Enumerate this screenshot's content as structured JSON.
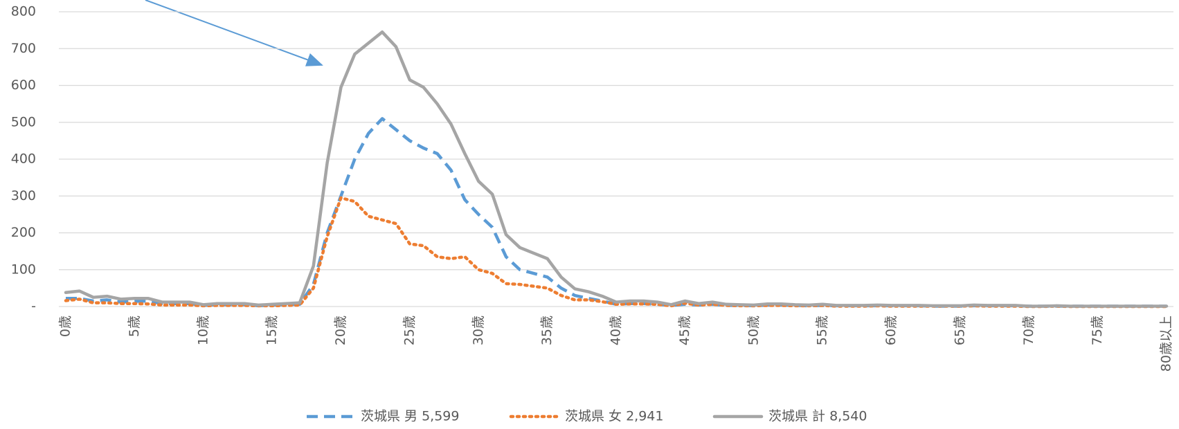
{
  "chart_data": {
    "type": "line",
    "categories": [
      "0歳",
      null,
      null,
      null,
      null,
      "5歳",
      null,
      null,
      null,
      null,
      "10歳",
      null,
      null,
      null,
      null,
      "15歳",
      null,
      null,
      null,
      null,
      "20歳",
      null,
      null,
      null,
      null,
      "25歳",
      null,
      null,
      null,
      null,
      "30歳",
      null,
      null,
      null,
      null,
      "35歳",
      null,
      null,
      null,
      null,
      "40歳",
      null,
      null,
      null,
      null,
      "45歳",
      null,
      null,
      null,
      null,
      "50歳",
      null,
      null,
      null,
      null,
      "55歳",
      null,
      null,
      null,
      null,
      "60歳",
      null,
      null,
      null,
      null,
      "65歳",
      null,
      null,
      null,
      null,
      "70歳",
      null,
      null,
      null,
      null,
      "75歳",
      null,
      null,
      null,
      null,
      "80歳以上"
    ],
    "series": [
      {
        "name": "茨城県 男 5,599",
        "color": "#5b9bd5",
        "dash": "dashed",
        "values": [
          22,
          22,
          15,
          18,
          12,
          14,
          15,
          8,
          8,
          8,
          3,
          5,
          5,
          5,
          2,
          4,
          5,
          6,
          60,
          200,
          300,
          400,
          470,
          510,
          480,
          450,
          430,
          415,
          370,
          290,
          250,
          215,
          135,
          100,
          90,
          80,
          50,
          30,
          22,
          15,
          6,
          8,
          8,
          6,
          3,
          6,
          4,
          6,
          3,
          3,
          2,
          4,
          4,
          3,
          2,
          3,
          2,
          2,
          2,
          2,
          2,
          2,
          2,
          1,
          1,
          1,
          2,
          2,
          2,
          2,
          1,
          1,
          1,
          1,
          1,
          1,
          1,
          1,
          1,
          1,
          1
        ]
      },
      {
        "name": "茨城県 女 2,941",
        "color": "#ed7d31",
        "dash": "dotted",
        "values": [
          16,
          20,
          10,
          10,
          8,
          8,
          7,
          4,
          4,
          4,
          2,
          3,
          3,
          3,
          2,
          2,
          3,
          4,
          50,
          190,
          295,
          285,
          245,
          235,
          225,
          170,
          165,
          135,
          130,
          135,
          100,
          90,
          62,
          60,
          55,
          50,
          30,
          18,
          18,
          13,
          6,
          7,
          7,
          6,
          2,
          9,
          4,
          6,
          3,
          2,
          2,
          3,
          3,
          2,
          2,
          3,
          1,
          1,
          1,
          2,
          1,
          1,
          1,
          1,
          1,
          1,
          2,
          1,
          1,
          1,
          0,
          0,
          1,
          0,
          0,
          0,
          0,
          0,
          0,
          0,
          0
        ]
      },
      {
        "name": "茨城県 計 8,540",
        "color": "#a5a5a5",
        "dash": "solid",
        "values": [
          38,
          42,
          25,
          28,
          20,
          22,
          22,
          12,
          12,
          12,
          5,
          8,
          8,
          8,
          4,
          6,
          8,
          10,
          110,
          390,
          595,
          685,
          715,
          745,
          705,
          615,
          595,
          550,
          495,
          415,
          340,
          305,
          195,
          160,
          145,
          130,
          80,
          48,
          40,
          28,
          12,
          15,
          15,
          12,
          5,
          15,
          8,
          12,
          6,
          5,
          4,
          7,
          7,
          5,
          4,
          6,
          3,
          3,
          3,
          4,
          3,
          3,
          3,
          2,
          2,
          2,
          4,
          3,
          3,
          3,
          1,
          1,
          2,
          1,
          1,
          1,
          1,
          1,
          1,
          1,
          1
        ]
      }
    ],
    "ylim": [
      0,
      800
    ],
    "yticks": [
      {
        "value": 0,
        "label": "-"
      },
      100,
      200,
      300,
      400,
      500,
      600,
      700,
      800
    ],
    "grid": true,
    "legend": "bottom"
  }
}
